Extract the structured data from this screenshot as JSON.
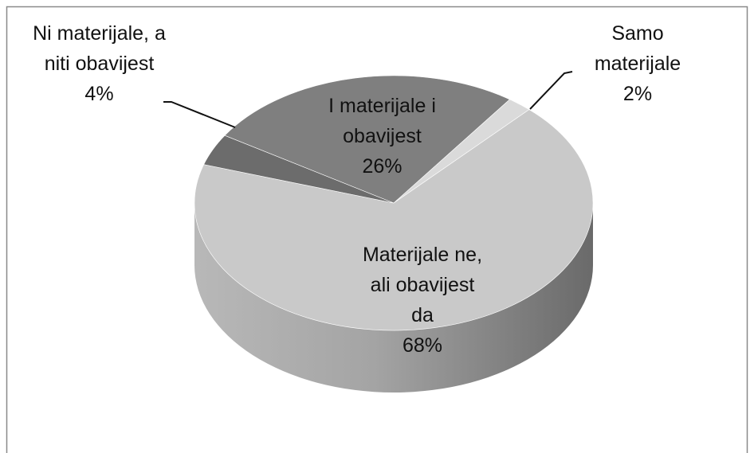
{
  "chart_data": {
    "type": "pie",
    "categories": [
      "I materijale i obavijest",
      "Samo materijale",
      "Materijale ne, ali obavijest da",
      "Ni materijale, a niti obavijest"
    ],
    "values": [
      26,
      2,
      68,
      4
    ],
    "value_labels": [
      "26%",
      "2%",
      "68%",
      "4%"
    ],
    "colors": [
      "#7f7f7f",
      "#dadada",
      "#c9c9c9",
      "#6c6c6c"
    ]
  }
}
